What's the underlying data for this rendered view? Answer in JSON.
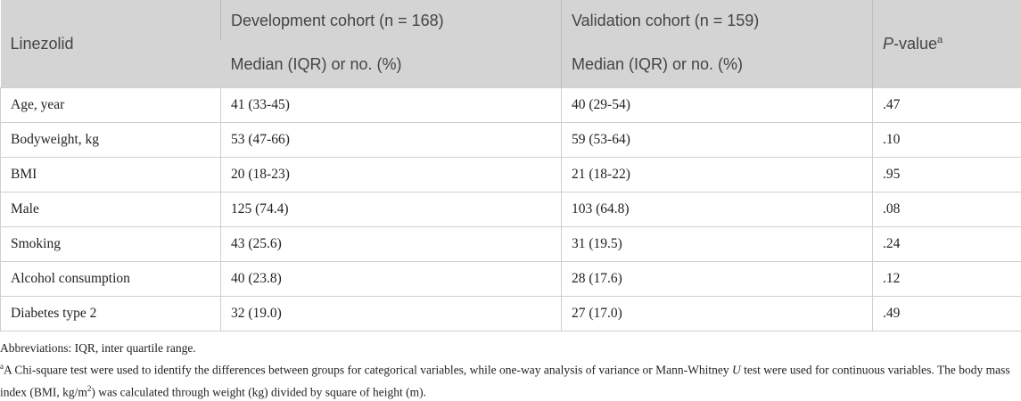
{
  "table": {
    "headers": {
      "col1": "Linezolid",
      "col2": "Development cohort (n = 168)",
      "col3": "Validation cohort (n = 159)",
      "col4_italic": "P",
      "col4_rest": "-value",
      "col4_sup": "a",
      "sub2": "Median (IQR) or no. (%)",
      "sub3": "Median (IQR) or no. (%)"
    },
    "rows": [
      {
        "label": "Age, year",
        "dev": "41 (33-45)",
        "val": "40 (29-54)",
        "p": ".47"
      },
      {
        "label": "Bodyweight, kg",
        "dev": "53 (47-66)",
        "val": "59 (53-64)",
        "p": ".10"
      },
      {
        "label": "BMI",
        "dev": "20 (18-23)",
        "val": "21 (18-22)",
        "p": ".95"
      },
      {
        "label": "Male",
        "dev": "125 (74.4)",
        "val": "103 (64.8)",
        "p": ".08"
      },
      {
        "label": "Smoking",
        "dev": "43 (25.6)",
        "val": "31 (19.5)",
        "p": ".24"
      },
      {
        "label": "Alcohol consumption",
        "dev": "40 (23.8)",
        "val": "28 (17.6)",
        "p": ".12"
      },
      {
        "label": "Diabetes type 2",
        "dev": "32 (19.0)",
        "val": "27 (17.0)",
        "p": ".49"
      }
    ]
  },
  "footnotes": {
    "abbreviations": "Abbreviations: IQR, inter quartile range.",
    "note_marker": "a",
    "note_part1": "A Chi-square test were used to identify the differences between groups for categorical variables, while one-way analysis of variance or Mann-Whitney ",
    "note_italic": "U",
    "note_part2": " test were used for continuous variables. The body mass index (BMI, kg/m",
    "note_sup": "2",
    "note_part3": ") was calculated through weight (kg) divided by square of height (m)."
  }
}
